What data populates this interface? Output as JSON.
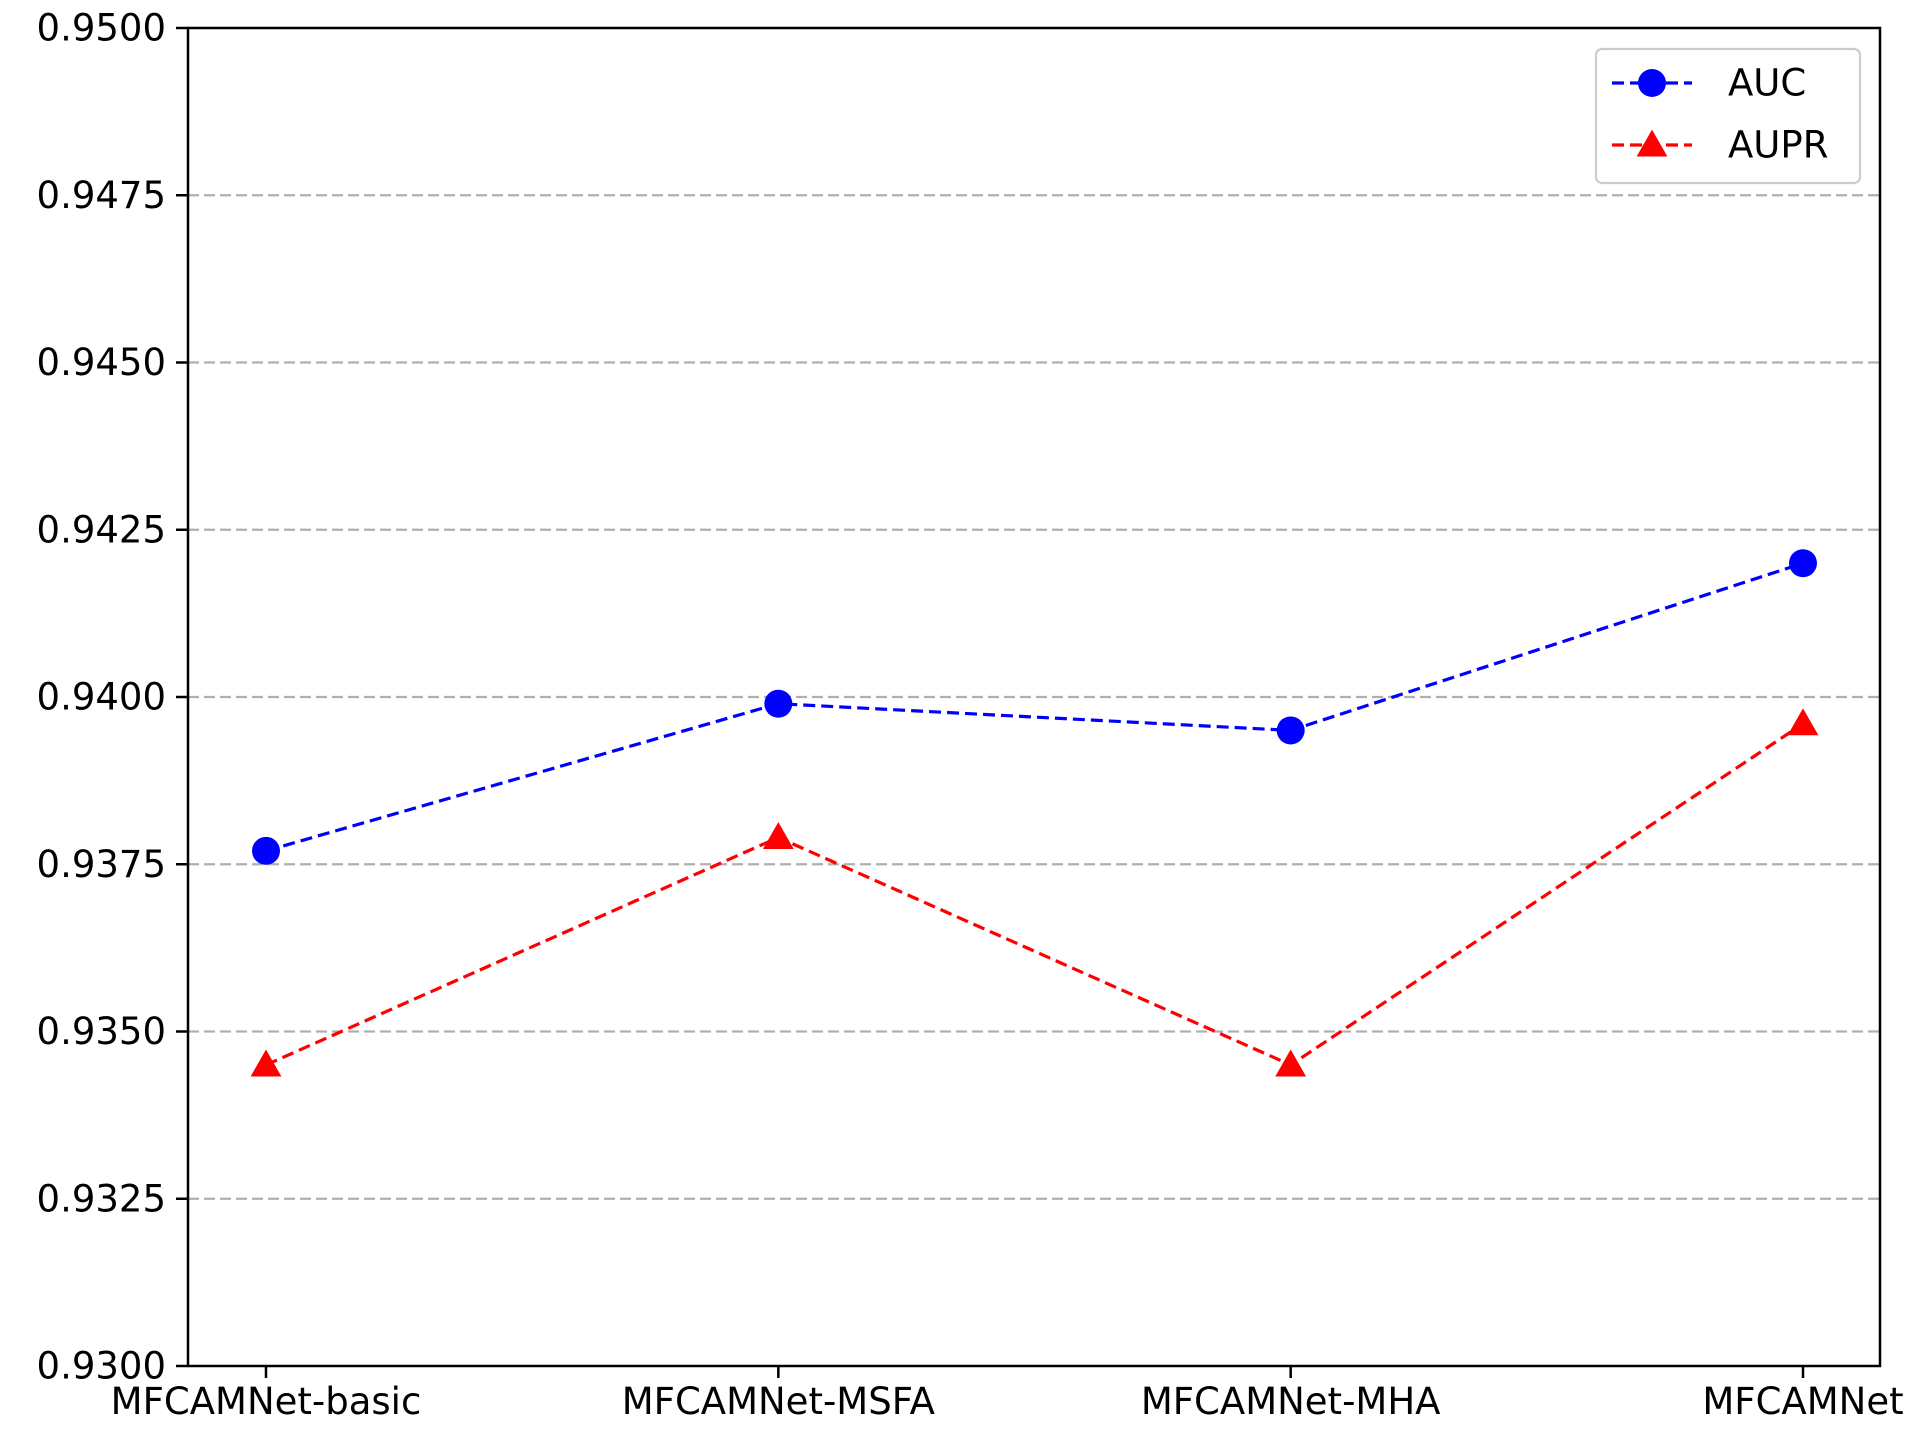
{
  "chart_data": {
    "type": "line",
    "title": "",
    "xlabel": "",
    "ylabel": "",
    "categories": [
      "MFCAMNet-basic",
      "MFCAMNet-MSFA",
      "MFCAMNet-MHA",
      "MFCAMNet"
    ],
    "ylim": [
      0.93,
      0.95
    ],
    "yticks": [
      "0.9300",
      "0.9325",
      "0.9350",
      "0.9375",
      "0.9400",
      "0.9425",
      "0.9450",
      "0.9475",
      "0.9500"
    ],
    "grid": "horizontal dashed",
    "legend_position": "top-right",
    "series": [
      {
        "name": "AUC",
        "values": [
          0.9377,
          0.9399,
          0.9395,
          0.942
        ],
        "color": "#0000ff",
        "marker": "circle",
        "line_style": "dashed"
      },
      {
        "name": "AUPR",
        "values": [
          0.9345,
          0.9379,
          0.9345,
          0.9396
        ],
        "color": "#ff0000",
        "marker": "triangle",
        "line_style": "dashed"
      }
    ]
  }
}
